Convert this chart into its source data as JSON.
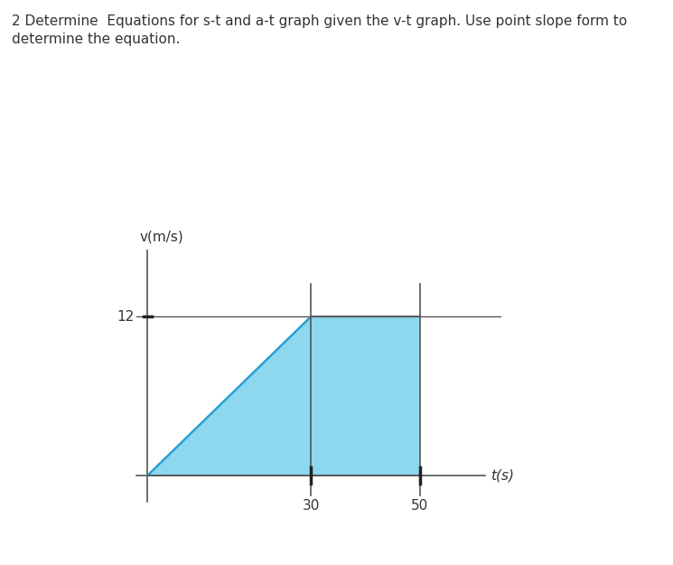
{
  "title_line1": "2 Determine  Equations for s-t and a-t graph given the v-t graph. Use point slope form to",
  "title_line2": "determine the equation.",
  "ylabel": "v(m/s)",
  "xlabel": "t(s)",
  "v_value": 12,
  "t1": 30,
  "t2": 50,
  "fill_color": "#8DD8EE",
  "ramp_color": "#2B9FD4",
  "line_color": "#555555",
  "axis_color": "#555555",
  "tick_label_fontsize": 11,
  "axis_label_fontsize": 11,
  "title_fontsize": 11,
  "background_color": "#ffffff",
  "fig_width": 7.45,
  "fig_height": 6.25,
  "dpi": 100
}
